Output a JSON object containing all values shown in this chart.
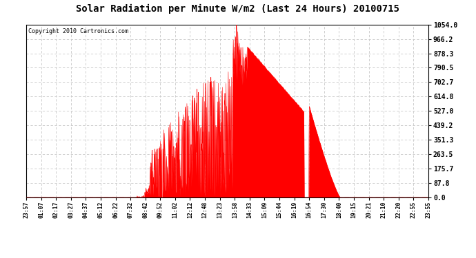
{
  "title": "Solar Radiation per Minute W/m2 (Last 24 Hours) 20100715",
  "copyright": "Copyright 2010 Cartronics.com",
  "background_color": "#ffffff",
  "plot_bg_color": "#ffffff",
  "fill_color": "#ff0000",
  "line_color": "#ff0000",
  "dashed_line_color": "#ff0000",
  "grid_color": "#c8c8c8",
  "ytick_labels": [
    "0.0",
    "87.8",
    "175.7",
    "263.5",
    "351.3",
    "439.2",
    "527.0",
    "614.8",
    "702.7",
    "790.5",
    "878.3",
    "966.2",
    "1054.0"
  ],
  "ytick_values": [
    0.0,
    87.8,
    175.7,
    263.5,
    351.3,
    439.2,
    527.0,
    614.8,
    702.7,
    790.5,
    878.3,
    966.2,
    1054.0
  ],
  "ymax": 1054.0,
  "ymin": 0.0,
  "xtick_labels": [
    "23:57",
    "01:07",
    "02:17",
    "03:27",
    "04:37",
    "05:12",
    "06:22",
    "07:32",
    "08:42",
    "09:52",
    "11:02",
    "12:12",
    "12:48",
    "13:23",
    "13:58",
    "14:33",
    "15:09",
    "15:44",
    "16:19",
    "16:54",
    "17:30",
    "18:40",
    "19:15",
    "20:21",
    "21:10",
    "22:20",
    "22:55",
    "23:55"
  ],
  "num_points": 1440,
  "figsize": [
    6.9,
    3.75
  ],
  "dpi": 100
}
